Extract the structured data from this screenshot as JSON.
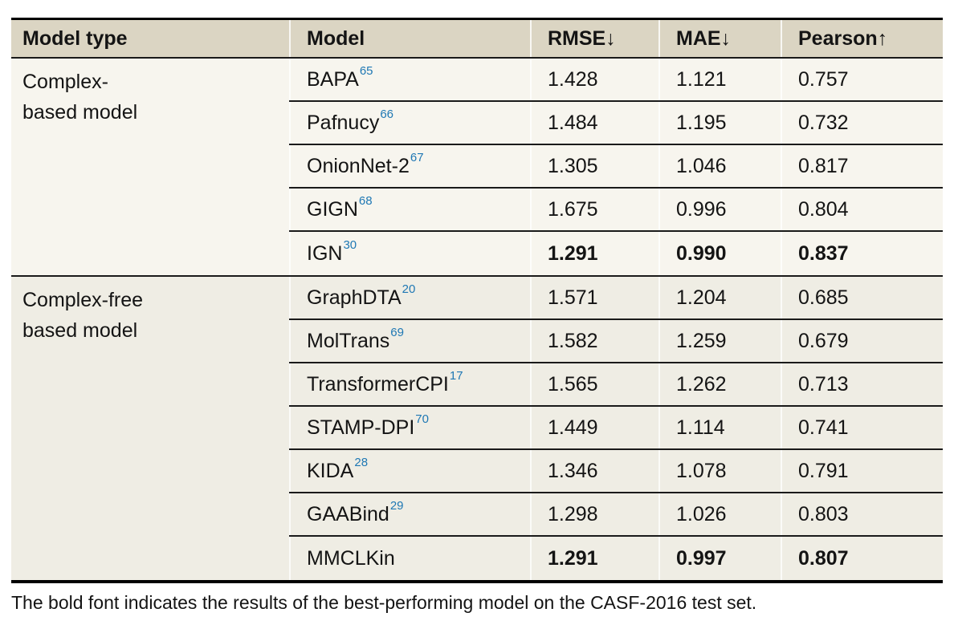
{
  "colors": {
    "header-bg": "#dbd5c3",
    "group1-bg": "#f7f5ee",
    "group2-bg": "#efede4",
    "rule": "#1a1a1a",
    "text": "#141414",
    "ref-blue": "#1f78b4",
    "page-bg": "#ffffff"
  },
  "table": {
    "headers": {
      "model_type": "Model type",
      "model": "Model",
      "rmse": "RMSE↓",
      "mae": "MAE↓",
      "pearson": "Pearson↑"
    },
    "groups": [
      {
        "type_lines": [
          "Complex-",
          "based model"
        ],
        "rows": [
          {
            "model": "BAPA",
            "ref": "65",
            "rmse": "1.428",
            "mae": "1.121",
            "pearson": "0.757"
          },
          {
            "model": "Pafnucy",
            "ref": "66",
            "rmse": "1.484",
            "mae": "1.195",
            "pearson": "0.732"
          },
          {
            "model": "OnionNet-2",
            "ref": "67",
            "rmse": "1.305",
            "mae": "1.046",
            "pearson": "0.817"
          },
          {
            "model": "GIGN",
            "ref": "68",
            "rmse": "1.675",
            "mae": "0.996",
            "pearson": "0.804"
          },
          {
            "model": "IGN",
            "ref": "30",
            "rmse": "1.291",
            "mae": "0.990",
            "pearson": "0.837",
            "best": true
          }
        ]
      },
      {
        "type_lines": [
          "Complex-free",
          "based model"
        ],
        "rows": [
          {
            "model": "GraphDTA",
            "ref": "20",
            "rmse": "1.571",
            "mae": "1.204",
            "pearson": "0.685"
          },
          {
            "model": "MolTrans",
            "ref": "69",
            "rmse": "1.582",
            "mae": "1.259",
            "pearson": "0.679"
          },
          {
            "model": "TransformerCPI",
            "ref": "17",
            "rmse": "1.565",
            "mae": "1.262",
            "pearson": "0.713"
          },
          {
            "model": "STAMP-DPI",
            "ref": "70",
            "rmse": "1.449",
            "mae": "1.114",
            "pearson": "0.741"
          },
          {
            "model": "KIDA",
            "ref": "28",
            "rmse": "1.346",
            "mae": "1.078",
            "pearson": "0.791"
          },
          {
            "model": "GAABind",
            "ref": "29",
            "rmse": "1.298",
            "mae": "1.026",
            "pearson": "0.803"
          },
          {
            "model": "MMCLKin",
            "ref": "",
            "rmse": "1.291",
            "mae": "0.997",
            "pearson": "0.807",
            "best": true
          }
        ]
      }
    ]
  },
  "footnote": "The bold font indicates the results of the best-performing model on the CASF-2016 test set."
}
